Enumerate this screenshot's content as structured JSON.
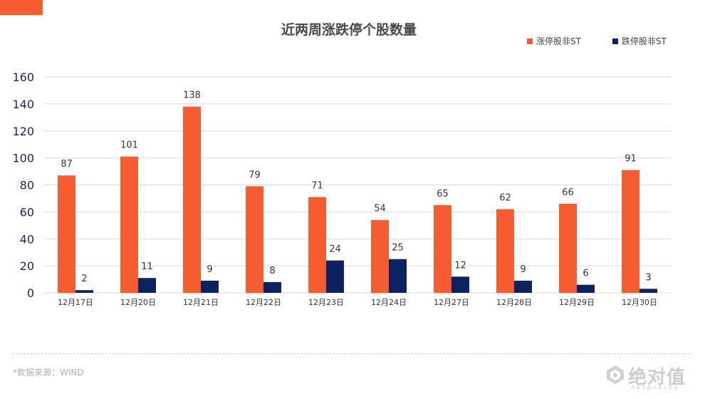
{
  "colors": {
    "series_up": "#f65c2f",
    "series_down": "#0d2260",
    "accent": "#f65c2f"
  },
  "source_note": "*数据来源：WIND",
  "logo": {
    "name": "绝对值",
    "sub": "ABSOVALUE"
  },
  "chart_data": {
    "type": "bar",
    "title": "近两周涨跌停个股数量",
    "xlabel": "",
    "ylabel": "",
    "ylim": [
      0,
      160
    ],
    "yticks": [
      0,
      20,
      40,
      60,
      80,
      100,
      120,
      140,
      160
    ],
    "grid": true,
    "legend_position": "top-right",
    "categories": [
      "12月17日",
      "12月20日",
      "12月21日",
      "12月22日",
      "12月23日",
      "12月24日",
      "12月27日",
      "12月28日",
      "12月29日",
      "12月30日"
    ],
    "series": [
      {
        "name": "涨停股非ST",
        "color": "#f65c2f",
        "values": [
          87,
          101,
          138,
          79,
          71,
          54,
          65,
          62,
          66,
          91
        ]
      },
      {
        "name": "跌停股非ST",
        "color": "#0d2260",
        "values": [
          2,
          11,
          9,
          8,
          24,
          25,
          12,
          9,
          6,
          3
        ]
      }
    ]
  }
}
